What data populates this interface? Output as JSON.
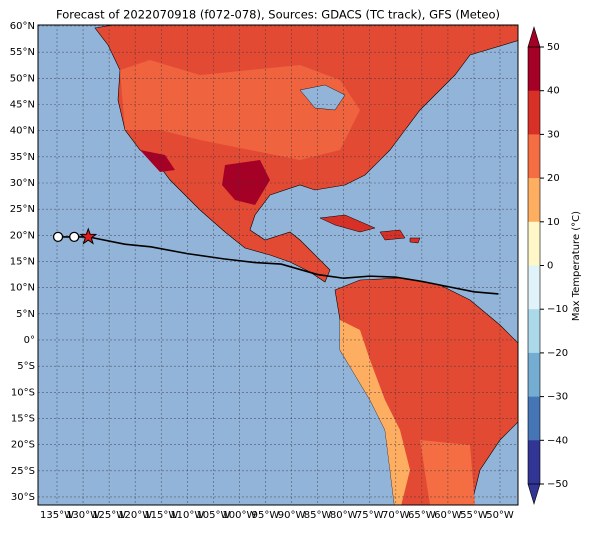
{
  "map": {
    "title": "Forecast of 2022070918 (f072-078), Sources: GDACS (TC track), GFS (Meteo)",
    "colorbar_label": "Max Temperature (°C)",
    "lat_ticks": [
      {
        "value": 60,
        "label": "60°N"
      },
      {
        "value": 55,
        "label": "55°N"
      },
      {
        "value": 50,
        "label": "50°N"
      },
      {
        "value": 45,
        "label": "45°N"
      },
      {
        "value": 40,
        "label": "40°N"
      },
      {
        "value": 35,
        "label": "35°N"
      },
      {
        "value": 30,
        "label": "30°N"
      },
      {
        "value": 25,
        "label": "25°N"
      },
      {
        "value": 20,
        "label": "20°N"
      },
      {
        "value": 15,
        "label": "15°N"
      },
      {
        "value": 10,
        "label": "10°N"
      },
      {
        "value": 5,
        "label": "5°N"
      },
      {
        "value": 0,
        "label": "0°"
      },
      {
        "value": -5,
        "label": "5°S"
      },
      {
        "value": -10,
        "label": "10°S"
      },
      {
        "value": -15,
        "label": "15°S"
      },
      {
        "value": -20,
        "label": "20°S"
      },
      {
        "value": -25,
        "label": "25°S"
      },
      {
        "value": -30,
        "label": "30°S"
      }
    ],
    "lon_ticks": [
      {
        "value": -135,
        "label": "135°W"
      },
      {
        "value": -130,
        "label": "130°W"
      },
      {
        "value": -125,
        "label": "125°W"
      },
      {
        "value": -120,
        "label": "120°W"
      },
      {
        "value": -115,
        "label": "115°W"
      },
      {
        "value": -110,
        "label": "110°W"
      },
      {
        "value": -105,
        "label": "105°W"
      },
      {
        "value": -100,
        "label": "100°W"
      },
      {
        "value": -95,
        "label": "95°W"
      },
      {
        "value": -90,
        "label": "90°W"
      },
      {
        "value": -85,
        "label": "85°W"
      },
      {
        "value": -80,
        "label": "80°W"
      },
      {
        "value": -75,
        "label": "75°W"
      },
      {
        "value": -70,
        "label": "70°W"
      },
      {
        "value": -65,
        "label": "65°W"
      },
      {
        "value": -60,
        "label": "60°W"
      },
      {
        "value": -55,
        "label": "55°W"
      },
      {
        "value": -50,
        "label": "50°W"
      }
    ],
    "colorbar_ticks": [
      50,
      40,
      30,
      20,
      10,
      0,
      {
        "value": -10,
        "label": "−10"
      },
      {
        "value": -20,
        "label": "−20"
      },
      {
        "value": -30,
        "label": "−30"
      },
      {
        "value": -40,
        "label": "−40"
      },
      {
        "value": -50,
        "label": "−50"
      }
    ],
    "colorbar_colors": [
      "#a50026",
      "#d73027",
      "#f46d43",
      "#fdae61",
      "#fff7c8",
      "#e0f3f8",
      "#abd9e9",
      "#74add1",
      "#4575b4",
      "#313695"
    ],
    "track": {
      "lon": [
        -134.8,
        -131.7,
        -129,
        -122,
        -117,
        -110,
        -103,
        -97,
        -92,
        -85,
        -80,
        -75,
        -70,
        -65,
        -60,
        -55,
        -50.3
      ],
      "lat": [
        19.7,
        19.7,
        19.7,
        18.3,
        17.8,
        16.5,
        15.5,
        14.8,
        14.5,
        12.5,
        11.8,
        12.2,
        12,
        11.2,
        10.2,
        9.2,
        8.8
      ]
    }
  }
}
